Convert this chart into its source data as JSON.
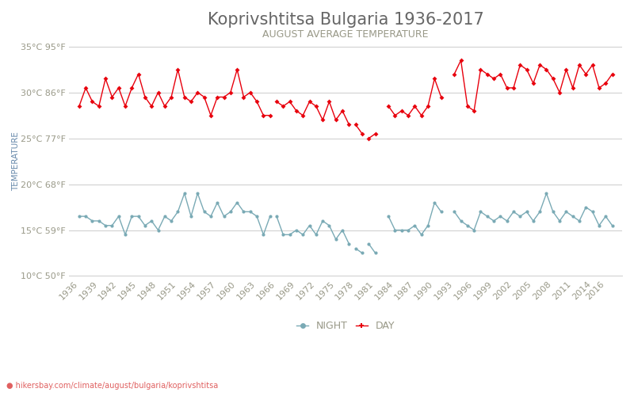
{
  "title": "Koprivshtitsa Bulgaria 1936-2017",
  "subtitle": "AUGUST AVERAGE TEMPERATURE",
  "ylabel": "TEMPERATURE",
  "xlabel_url": "hikersbay.com/climate/august/bulgaria/koprivshtitsa",
  "legend_night": "NIGHT",
  "legend_day": "DAY",
  "color_day": "#e8000d",
  "color_night": "#7aaab5",
  "color_title": "#666666",
  "color_subtitle": "#999988",
  "color_ylabel": "#6688aa",
  "color_grid": "#cccccc",
  "color_bg": "#ffffff",
  "color_url": "#e06060",
  "ylim_min": 10,
  "ylim_max": 35,
  "yticks_c": [
    10,
    15,
    20,
    25,
    30,
    35
  ],
  "yticks_f": [
    50,
    59,
    68,
    77,
    86,
    95
  ],
  "day_segments": [
    {
      "years": [
        1936,
        1937,
        1938,
        1939,
        1940,
        1941,
        1942,
        1943,
        1944,
        1945,
        1946,
        1947,
        1948,
        1949,
        1950,
        1951,
        1952,
        1953,
        1954,
        1955,
        1956,
        1957,
        1958,
        1959,
        1960,
        1961,
        1962,
        1963,
        1964,
        1965
      ],
      "temps": [
        28.5,
        30.5,
        29.0,
        28.5,
        31.5,
        29.5,
        30.5,
        28.5,
        30.5,
        32.0,
        29.5,
        28.5,
        30.0,
        28.5,
        29.5,
        32.5,
        29.5,
        29.0,
        30.0,
        29.5,
        27.5,
        29.5,
        29.5,
        30.0,
        32.5,
        29.5,
        30.0,
        29.0,
        27.5,
        27.5
      ]
    },
    {
      "years": [
        1966,
        1967,
        1968,
        1969,
        1970,
        1971,
        1972,
        1973,
        1974,
        1975,
        1976,
        1977
      ],
      "temps": [
        29.0,
        28.5,
        29.0,
        28.0,
        27.5,
        29.0,
        28.5,
        27.0,
        29.0,
        27.0,
        28.0,
        26.5
      ]
    },
    {
      "years": [
        1978,
        1979
      ],
      "temps": [
        26.5,
        25.5
      ]
    },
    {
      "years": [
        1980,
        1981
      ],
      "temps": [
        25.0,
        25.5
      ]
    },
    {
      "years": [
        1983,
        1984,
        1985,
        1986,
        1987,
        1988,
        1989,
        1990,
        1991
      ],
      "temps": [
        28.5,
        27.5,
        28.0,
        27.5,
        28.5,
        27.5,
        28.5,
        31.5,
        29.5
      ]
    },
    {
      "years": [
        1993,
        1994,
        1995,
        1996,
        1997,
        1998,
        1999,
        2000,
        2001,
        2002,
        2003,
        2004,
        2005,
        2006,
        2007,
        2008,
        2009,
        2010,
        2011,
        2012,
        2013,
        2014,
        2015,
        2016,
        2017
      ],
      "temps": [
        32.0,
        33.5,
        28.5,
        28.0,
        32.5,
        32.0,
        31.5,
        32.0,
        30.5,
        30.5,
        33.0,
        32.5,
        31.0,
        33.0,
        32.5,
        31.5,
        30.0,
        32.5,
        30.5,
        33.0,
        32.0,
        33.0,
        30.5,
        31.0,
        32.0
      ]
    }
  ],
  "night_segments": [
    {
      "years": [
        1936,
        1937,
        1938,
        1939,
        1940,
        1941,
        1942,
        1943,
        1944,
        1945,
        1946,
        1947,
        1948,
        1949,
        1950,
        1951,
        1952,
        1953,
        1954,
        1955,
        1956,
        1957,
        1958,
        1959,
        1960,
        1961,
        1962,
        1963,
        1964,
        1965
      ],
      "temps": [
        16.5,
        16.5,
        16.0,
        16.0,
        15.5,
        15.5,
        16.5,
        14.5,
        16.5,
        16.5,
        15.5,
        16.0,
        15.0,
        16.5,
        16.0,
        17.0,
        19.0,
        16.5,
        19.0,
        17.0,
        16.5,
        18.0,
        16.5,
        17.0,
        18.0,
        17.0,
        17.0,
        16.5,
        14.5,
        16.5
      ]
    },
    {
      "years": [
        1966,
        1967,
        1968,
        1969,
        1970,
        1971,
        1972,
        1973,
        1974,
        1975,
        1976,
        1977
      ],
      "temps": [
        16.5,
        14.5,
        14.5,
        15.0,
        14.5,
        15.5,
        14.5,
        16.0,
        15.5,
        14.0,
        15.0,
        13.5
      ]
    },
    {
      "years": [
        1978,
        1979
      ],
      "temps": [
        13.0,
        12.5
      ]
    },
    {
      "years": [
        1980,
        1981
      ],
      "temps": [
        13.5,
        12.5
      ]
    },
    {
      "years": [
        1983,
        1984,
        1985,
        1986,
        1987,
        1988,
        1989,
        1990,
        1991
      ],
      "temps": [
        16.5,
        15.0,
        15.0,
        15.0,
        15.5,
        14.5,
        15.5,
        18.0,
        17.0
      ]
    },
    {
      "years": [
        1993,
        1994,
        1995,
        1996,
        1997,
        1998,
        1999,
        2000,
        2001,
        2002,
        2003,
        2004,
        2005,
        2006,
        2007,
        2008,
        2009,
        2010,
        2011,
        2012,
        2013,
        2014,
        2015,
        2016,
        2017
      ],
      "temps": [
        17.0,
        16.0,
        15.5,
        15.0,
        17.0,
        16.5,
        16.0,
        16.5,
        16.0,
        17.0,
        16.5,
        17.0,
        16.0,
        17.0,
        19.0,
        17.0,
        16.0,
        17.0,
        16.5,
        16.0,
        17.5,
        17.0,
        15.5,
        16.5,
        15.5
      ]
    }
  ],
  "xtick_years": [
    1936,
    1939,
    1942,
    1945,
    1948,
    1951,
    1954,
    1957,
    1960,
    1963,
    1966,
    1969,
    1972,
    1975,
    1978,
    1981,
    1984,
    1987,
    1990,
    1993,
    1996,
    1999,
    2002,
    2005,
    2008,
    2011,
    2014,
    2016
  ],
  "title_fontsize": 15,
  "subtitle_fontsize": 9,
  "tick_fontsize": 8,
  "ylabel_fontsize": 7.5,
  "legend_fontsize": 9,
  "figsize": [
    8.0,
    5.0
  ],
  "dpi": 100
}
